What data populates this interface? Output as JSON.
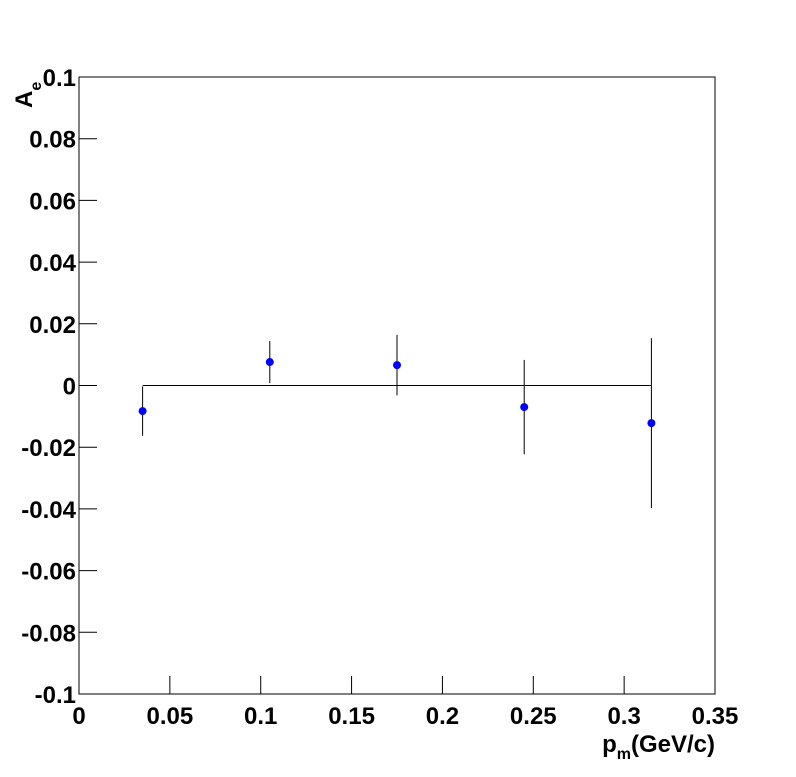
{
  "chart_data": {
    "type": "errorbar",
    "x_label": {
      "main": "p",
      "sub": "m",
      "rest": "(GeV/c)"
    },
    "y_label": {
      "main": "A",
      "sub": "e"
    },
    "series": [
      {
        "color": "#0000ff",
        "x": [
          0.035,
          0.105,
          0.175,
          0.245,
          0.315
        ],
        "values": [
          -0.0083,
          0.0076,
          0.0066,
          -0.007,
          -0.0122
        ],
        "errors": [
          0.008,
          0.0068,
          0.0098,
          0.0153,
          0.0275
        ]
      }
    ],
    "fit": {
      "color": "#000000",
      "x": [
        0.035,
        0.315
      ],
      "values": [
        0,
        0
      ]
    },
    "xlim": [
      0,
      0.35
    ],
    "xticks": [
      0,
      0.05,
      0.1,
      0.15,
      0.2,
      0.25,
      0.3,
      0.35
    ],
    "ylim": [
      -0.1,
      0.1
    ],
    "yticks": [
      -0.1,
      -0.08,
      -0.06,
      -0.04,
      -0.02,
      0,
      0.02,
      0.04,
      0.06,
      0.08,
      0.1
    ]
  }
}
